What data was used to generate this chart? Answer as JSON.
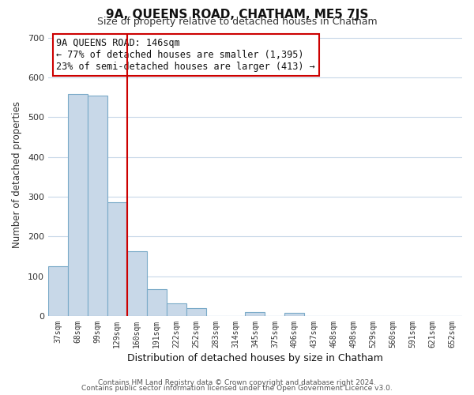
{
  "title": "9A, QUEENS ROAD, CHATHAM, ME5 7JS",
  "subtitle": "Size of property relative to detached houses in Chatham",
  "xlabel": "Distribution of detached houses by size in Chatham",
  "ylabel": "Number of detached properties",
  "bar_labels": [
    "37sqm",
    "68sqm",
    "99sqm",
    "129sqm",
    "160sqm",
    "191sqm",
    "222sqm",
    "252sqm",
    "283sqm",
    "314sqm",
    "345sqm",
    "375sqm",
    "406sqm",
    "437sqm",
    "468sqm",
    "498sqm",
    "529sqm",
    "560sqm",
    "591sqm",
    "621sqm",
    "652sqm"
  ],
  "bar_values": [
    125,
    558,
    555,
    285,
    163,
    68,
    32,
    20,
    0,
    0,
    10,
    0,
    7,
    0,
    0,
    0,
    0,
    0,
    0,
    0,
    0
  ],
  "bar_color": "#c8d8e8",
  "bar_edge_color": "#7aaac8",
  "property_line_color": "#cc0000",
  "ylim": [
    0,
    710
  ],
  "yticks": [
    0,
    100,
    200,
    300,
    400,
    500,
    600,
    700
  ],
  "annotation_title": "9A QUEENS ROAD: 146sqm",
  "annotation_line1": "← 77% of detached houses are smaller (1,395)",
  "annotation_line2": "23% of semi-detached houses are larger (413) →",
  "annotation_box_color": "#ffffff",
  "annotation_box_edge": "#cc0000",
  "footer1": "Contains HM Land Registry data © Crown copyright and database right 2024.",
  "footer2": "Contains public sector information licensed under the Open Government Licence v3.0.",
  "bg_color": "#ffffff",
  "grid_color": "#c8d8e8"
}
